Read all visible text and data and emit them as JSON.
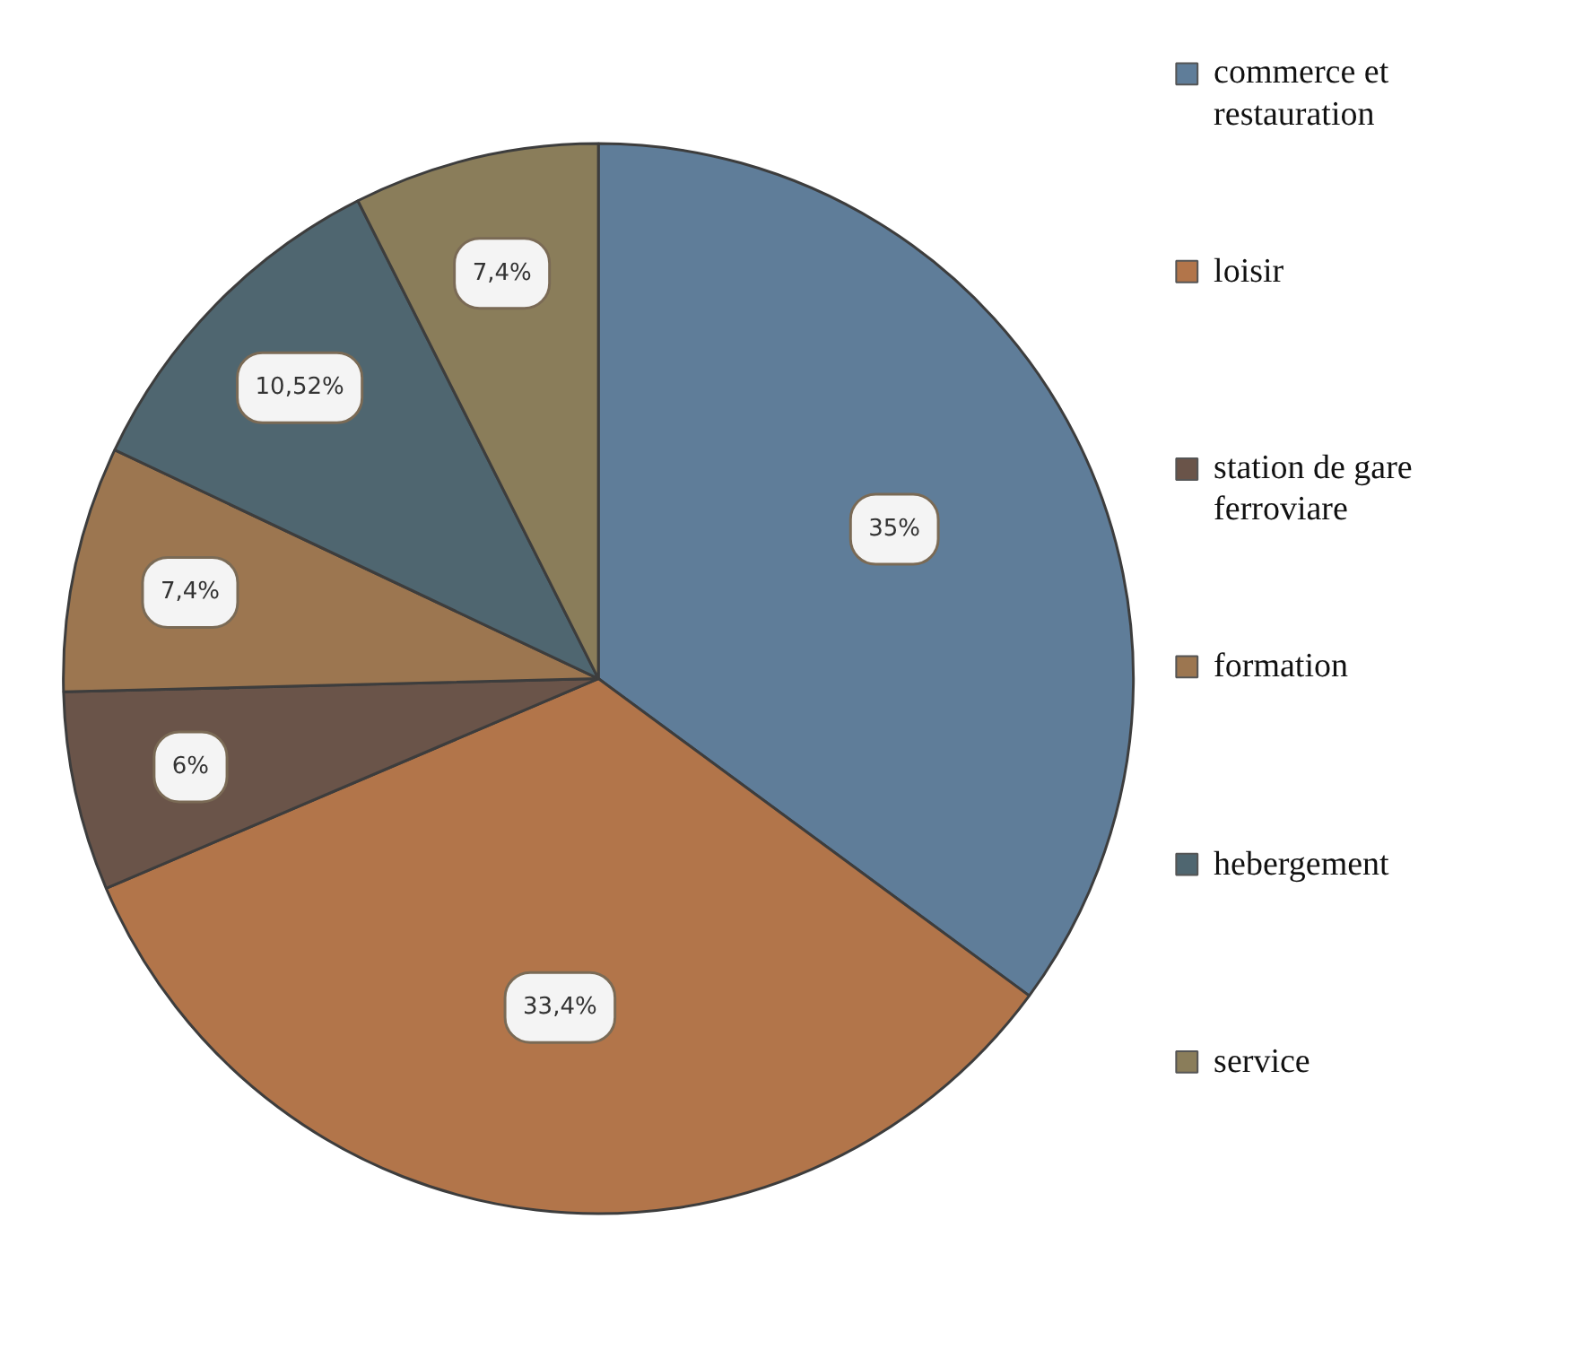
{
  "chart_data": {
    "type": "pie",
    "categories": [
      "commerce et restauration",
      "loisir",
      "station de gare ferroviare",
      "formation",
      "hebergement",
      "service"
    ],
    "values": [
      35,
      33.4,
      6,
      7.4,
      10.52,
      7.4
    ],
    "value_labels": [
      "35%",
      "33,4%",
      "6%",
      "7,4%",
      "10,52%",
      "7,4%"
    ],
    "colors": [
      "#5f7d99",
      "#b2754a",
      "#6a5449",
      "#9c7650",
      "#4f6670",
      "#8a7d5a"
    ],
    "legend": "right"
  }
}
